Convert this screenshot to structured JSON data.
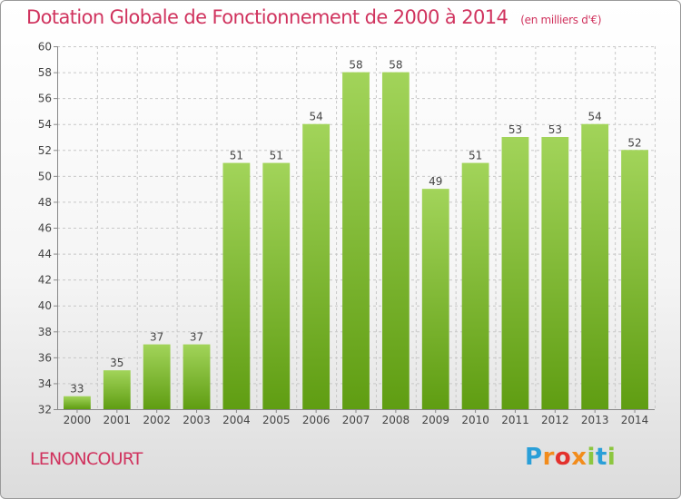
{
  "title": "Dotation Globale de Fonctionnement de 2000 à 2014",
  "unit": "(en milliers d'€)",
  "commune": "LENONCOURT",
  "logo": {
    "letters": [
      "P",
      "r",
      "o",
      "x",
      "i",
      "t",
      "i"
    ],
    "colors": [
      "#2a9fd8",
      "#f28c1c",
      "#e3312d",
      "#f28c1c",
      "#8cc63f",
      "#2a9fd8",
      "#8cc63f"
    ]
  },
  "chart_data": {
    "type": "bar",
    "categories": [
      "2000",
      "2001",
      "2002",
      "2003",
      "2004",
      "2005",
      "2006",
      "2007",
      "2008",
      "2009",
      "2010",
      "2011",
      "2012",
      "2013",
      "2014"
    ],
    "values": [
      33,
      35,
      37,
      37,
      51,
      51,
      54,
      58,
      58,
      49,
      51,
      53,
      53,
      54,
      52
    ],
    "title": "Dotation Globale de Fonctionnement de 2000 à 2014",
    "ylim": [
      32,
      60
    ],
    "yticks": [
      32,
      34,
      36,
      38,
      40,
      42,
      44,
      46,
      48,
      50,
      52,
      54,
      56,
      58,
      60
    ],
    "grid": true,
    "data_labels": true,
    "bar_color": "#7fbf2a"
  }
}
